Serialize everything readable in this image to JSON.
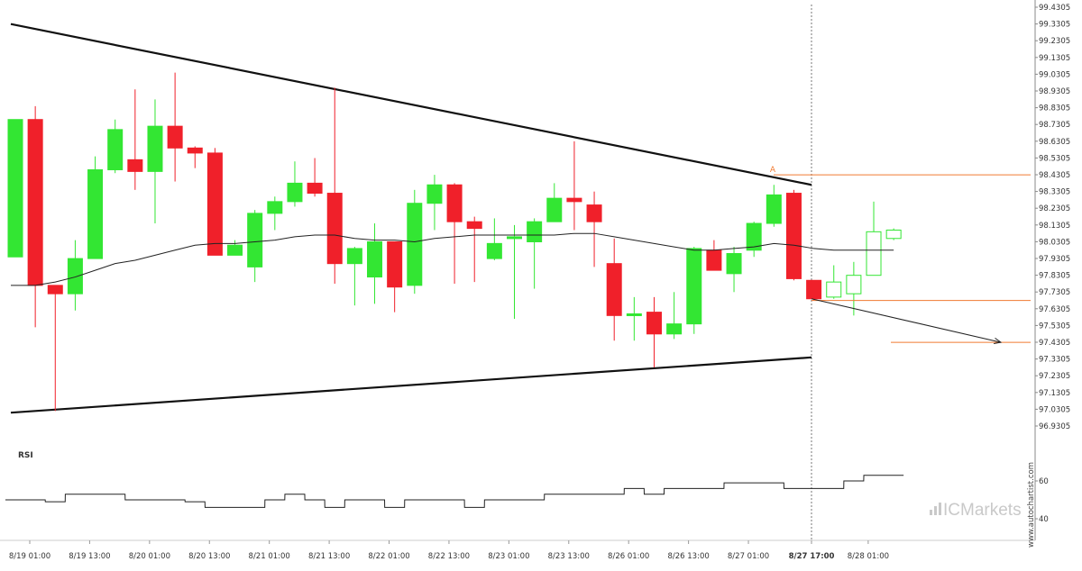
{
  "chart_data": {
    "type": "candlestick",
    "series": [
      {
        "name": "price",
        "candles": [
          {
            "o": 97.94,
            "h": 98.76,
            "l": 97.94,
            "c": 98.76
          },
          {
            "o": 98.76,
            "h": 98.84,
            "l": 97.52,
            "c": 97.77
          },
          {
            "o": 97.77,
            "h": 97.75,
            "l": 97.02,
            "c": 97.72
          },
          {
            "o": 97.72,
            "h": 98.04,
            "l": 97.62,
            "c": 97.93
          },
          {
            "o": 97.93,
            "h": 98.54,
            "l": 97.93,
            "c": 98.46
          },
          {
            "o": 98.46,
            "h": 98.76,
            "l": 98.44,
            "c": 98.7
          },
          {
            "o": 98.52,
            "h": 98.94,
            "l": 98.34,
            "c": 98.45
          },
          {
            "o": 98.45,
            "h": 98.88,
            "l": 98.14,
            "c": 98.72
          },
          {
            "o": 98.72,
            "h": 99.04,
            "l": 98.39,
            "c": 98.59
          },
          {
            "o": 98.59,
            "h": 98.6,
            "l": 98.47,
            "c": 98.56
          },
          {
            "o": 98.56,
            "h": 98.59,
            "l": 97.95,
            "c": 97.95
          },
          {
            "o": 97.95,
            "h": 98.04,
            "l": 97.95,
            "c": 98.01
          },
          {
            "o": 97.88,
            "h": 98.22,
            "l": 97.79,
            "c": 98.2
          },
          {
            "o": 98.2,
            "h": 98.3,
            "l": 98.1,
            "c": 98.27
          },
          {
            "o": 98.27,
            "h": 98.51,
            "l": 98.24,
            "c": 98.38
          },
          {
            "o": 98.38,
            "h": 98.53,
            "l": 98.3,
            "c": 98.32
          },
          {
            "o": 98.32,
            "h": 98.95,
            "l": 97.78,
            "c": 97.9
          },
          {
            "o": 97.9,
            "h": 98.0,
            "l": 97.65,
            "c": 97.99
          },
          {
            "o": 97.82,
            "h": 98.14,
            "l": 97.66,
            "c": 98.03
          },
          {
            "o": 98.03,
            "h": 98.03,
            "l": 97.61,
            "c": 97.76
          },
          {
            "o": 97.77,
            "h": 98.34,
            "l": 97.72,
            "c": 98.26
          },
          {
            "o": 98.26,
            "h": 98.43,
            "l": 98.1,
            "c": 98.37
          },
          {
            "o": 98.37,
            "h": 98.38,
            "l": 97.78,
            "c": 98.15
          },
          {
            "o": 98.15,
            "h": 98.18,
            "l": 97.79,
            "c": 98.11
          },
          {
            "o": 97.93,
            "h": 98.17,
            "l": 97.92,
            "c": 98.02
          },
          {
            "o": 98.06,
            "h": 98.13,
            "l": 97.57,
            "c": 98.06
          },
          {
            "o": 98.03,
            "h": 98.17,
            "l": 97.75,
            "c": 98.15
          },
          {
            "o": 98.15,
            "h": 98.38,
            "l": 98.15,
            "c": 98.29
          },
          {
            "o": 98.29,
            "h": 98.63,
            "l": 98.1,
            "c": 98.27
          },
          {
            "o": 98.25,
            "h": 98.33,
            "l": 97.88,
            "c": 98.15
          },
          {
            "o": 97.9,
            "h": 98.05,
            "l": 97.44,
            "c": 97.59
          },
          {
            "o": 97.59,
            "h": 97.7,
            "l": 97.44,
            "c": 97.6
          },
          {
            "o": 97.61,
            "h": 97.7,
            "l": 97.28,
            "c": 97.48
          },
          {
            "o": 97.48,
            "h": 97.73,
            "l": 97.45,
            "c": 97.54
          },
          {
            "o": 97.54,
            "h": 98.0,
            "l": 97.48,
            "c": 97.99
          },
          {
            "o": 97.98,
            "h": 98.04,
            "l": 97.87,
            "c": 97.86
          },
          {
            "o": 97.84,
            "h": 98.0,
            "l": 97.73,
            "c": 97.96
          },
          {
            "o": 97.98,
            "h": 98.15,
            "l": 97.94,
            "c": 98.14
          },
          {
            "o": 98.14,
            "h": 98.37,
            "l": 98.12,
            "c": 98.31
          },
          {
            "o": 98.32,
            "h": 98.34,
            "l": 97.8,
            "c": 97.81
          },
          {
            "o": 97.8,
            "h": 97.8,
            "l": 97.68,
            "c": 97.69
          },
          {
            "o": 97.7,
            "h": 97.89,
            "l": 97.69,
            "c": 97.79
          },
          {
            "o": 97.72,
            "h": 97.91,
            "l": 97.59,
            "c": 97.83
          },
          {
            "o": 97.83,
            "h": 98.27,
            "l": 97.83,
            "c": 98.09
          },
          {
            "o": 98.05,
            "h": 98.11,
            "l": 98.04,
            "c": 98.1
          }
        ]
      },
      {
        "name": "moving-average",
        "values": [
          97.77,
          97.77,
          97.79,
          97.82,
          97.86,
          97.9,
          97.92,
          97.95,
          97.98,
          98.01,
          98.02,
          98.02,
          98.03,
          98.04,
          98.06,
          98.07,
          98.07,
          98.05,
          98.04,
          98.04,
          98.03,
          98.05,
          98.06,
          98.07,
          98.07,
          98.07,
          98.07,
          98.07,
          98.08,
          98.08,
          98.06,
          98.04,
          98.02,
          98.0,
          97.98,
          97.98,
          97.99,
          98.0,
          98.02,
          98.01,
          97.99,
          97.98,
          97.98,
          97.98,
          97.98
        ]
      },
      {
        "name": "RSI",
        "values": [
          50,
          50,
          49,
          53,
          53,
          53,
          50,
          50,
          50,
          49,
          46,
          46,
          46,
          50,
          53,
          50,
          46,
          50,
          50,
          46,
          50,
          50,
          50,
          46,
          50,
          50,
          50,
          53,
          53,
          53,
          53,
          56,
          53,
          56,
          56,
          56,
          59,
          59,
          59,
          56,
          56,
          56,
          60,
          63,
          63
        ]
      }
    ],
    "projected_series": {
      "name": "projection",
      "candles": [
        41,
        42,
        43,
        44
      ]
    },
    "y_tick_labels": [
      "99.4305",
      "99.3305",
      "99.2305",
      "99.1305",
      "99.0305",
      "98.9305",
      "98.8305",
      "98.7305",
      "98.6305",
      "98.5305",
      "98.4305",
      "98.3305",
      "98.2305",
      "98.1305",
      "98.0305",
      "97.9305",
      "97.8305",
      "97.7305",
      "97.6305",
      "97.5305",
      "97.4305",
      "97.3305",
      "97.2305",
      "97.1305",
      "97.0305",
      "96.9305"
    ],
    "ylim": [
      96.89,
      99.44
    ],
    "x_tick_labels": [
      "8/19 01:00",
      "8/19 13:00",
      "8/20 01:00",
      "8/20 13:00",
      "8/21 01:00",
      "8/21 13:00",
      "8/22 01:00",
      "8/22 13:00",
      "8/23 01:00",
      "8/23 13:00",
      "8/26 01:00",
      "8/26 13:00",
      "8/27 01:00",
      "8/27 17:00",
      "8/28 01:00"
    ],
    "highlighted_x_label": "8/27 17:00",
    "rsi": {
      "title": "RSI",
      "tick_labels": [
        "60",
        "40"
      ],
      "ylim": [
        30,
        74
      ]
    },
    "pattern": {
      "type": "triangle",
      "upper_line": {
        "from": 99.33,
        "to": 98.37
      },
      "lower_line": {
        "from": 97.01,
        "to": 97.34
      },
      "marker_label": "A",
      "levels": [
        98.43,
        97.68,
        97.43
      ],
      "forecast": {
        "from": 97.69,
        "to": 97.43
      }
    },
    "colors": {
      "bullish": "#33e633",
      "bearish": "#f0202a",
      "pattern_lines": "#111111",
      "levels": "#f07a30",
      "moving_average": "#222222",
      "rsi_line": "#222222"
    },
    "grid": false
  },
  "branding": {
    "logo_text": "ICMarkets",
    "watermark": "www.autochartist.com"
  }
}
